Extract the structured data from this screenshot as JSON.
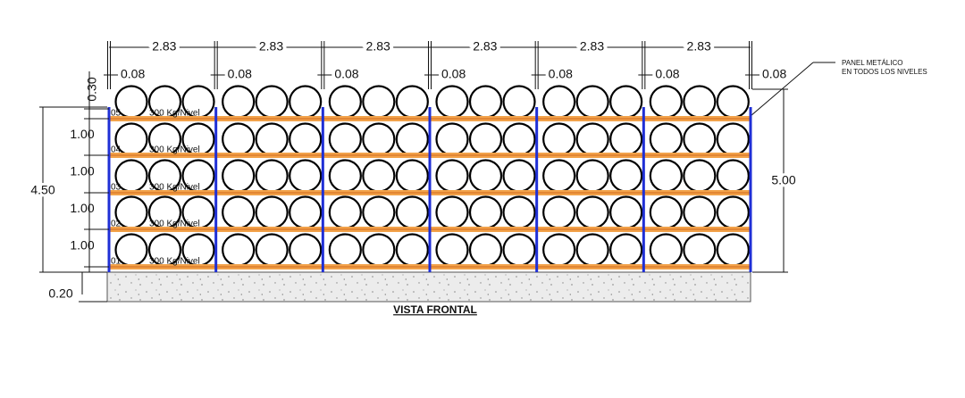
{
  "top_dimensions": {
    "bay_widths": [
      "2.83",
      "2.83",
      "2.83",
      "2.83",
      "2.83",
      "2.83"
    ],
    "clearances": [
      "0.08",
      "0.08",
      "0.08",
      "0.08",
      "0.08",
      "0.08",
      "0.08"
    ]
  },
  "left_dimensions": {
    "top_clearance": "0.30",
    "level_heights": [
      "1.00",
      "1.00",
      "1.00",
      "1.00"
    ],
    "total_height": "4.50",
    "floor": "0.20"
  },
  "right_dimension": "5.00",
  "note": {
    "lines": [
      "PANEL METÁLICO",
      "EN TODOS LOS NIVELES"
    ]
  },
  "levels": [
    {
      "id": "05",
      "load": "300 Kg/Nivel"
    },
    {
      "id": "04",
      "load": "300 Kg/Nivel"
    },
    {
      "id": "03",
      "load": "300 Kg/Nivel"
    },
    {
      "id": "02",
      "load": "300 Kg/Nivel"
    },
    {
      "id": "01",
      "load": "300 Kg/Nivel"
    }
  ],
  "caption": "VISTA FRONTAL"
}
